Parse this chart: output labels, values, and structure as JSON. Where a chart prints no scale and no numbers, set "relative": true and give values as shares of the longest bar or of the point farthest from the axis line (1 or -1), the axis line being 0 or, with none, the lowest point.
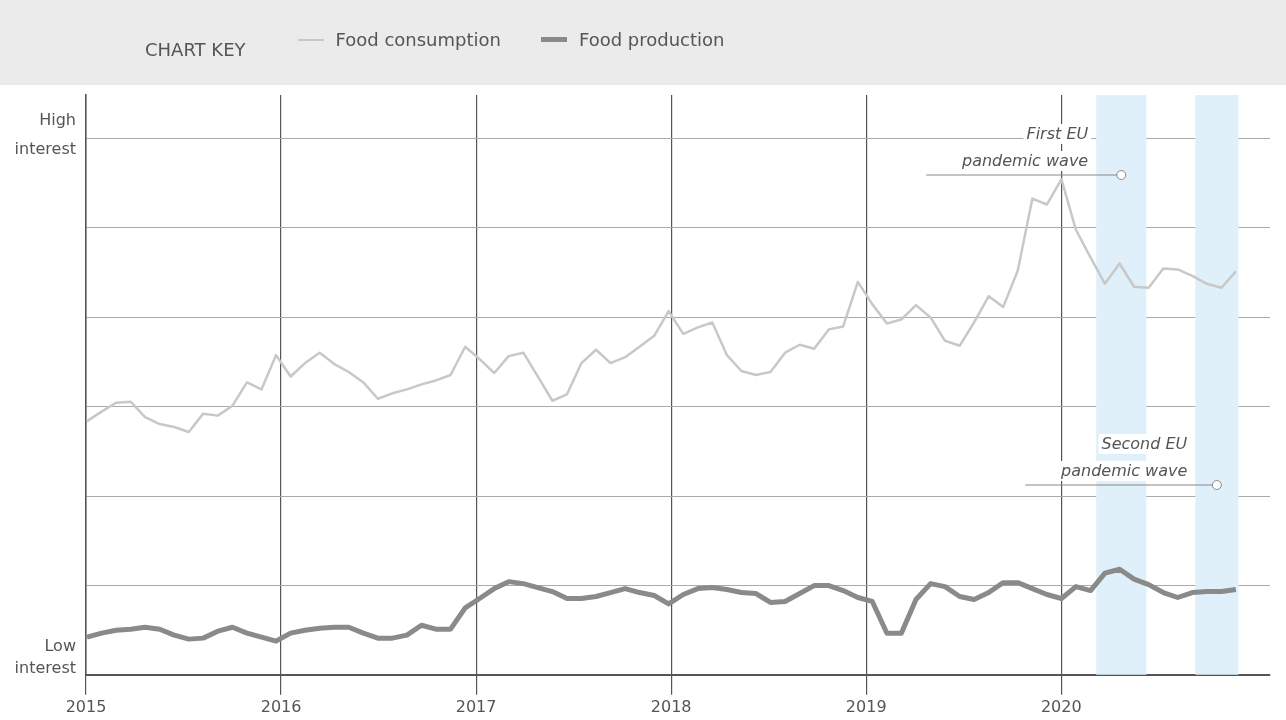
{
  "chart_data": {
    "type": "line",
    "relative": true,
    "legend": "top",
    "legend_title": "CHART KEY",
    "grid": true,
    "marker": "none",
    "line_style": "solid",
    "x": [
      2015.005,
      2015.08,
      2015.154,
      2015.229,
      2015.303,
      2015.378,
      2015.452,
      2015.527,
      2015.601,
      2015.676,
      2015.751,
      2015.825,
      2015.9,
      2015.974,
      2016.049,
      2016.123,
      2016.198,
      2016.273,
      2016.347,
      2016.422,
      2016.496,
      2016.571,
      2016.645,
      2016.72,
      2016.794,
      2016.869,
      2016.944,
      2017.018,
      2017.093,
      2017.167,
      2017.242,
      2017.316,
      2017.391,
      2017.466,
      2017.54,
      2017.615,
      2017.689,
      2017.764,
      2017.838,
      2017.913,
      2017.987,
      2018.062,
      2018.137,
      2018.211,
      2018.286,
      2018.36,
      2018.435,
      2018.509,
      2018.584,
      2018.659,
      2018.733,
      2018.808,
      2018.882,
      2018.957,
      2019.031,
      2019.106,
      2019.18,
      2019.255,
      2019.33,
      2019.404,
      2019.479,
      2019.553,
      2019.628,
      2019.702,
      2019.777,
      2019.852,
      2019.926,
      2020.001,
      2020.075,
      2020.15,
      2020.224,
      2020.299,
      2020.373,
      2020.448,
      2020.523,
      2020.597,
      2020.672,
      2020.746,
      2020.821,
      2020.895
    ],
    "xlim": [
      2015,
      2021.07
    ],
    "xticks": [
      2015,
      2016,
      2017,
      2018,
      2019,
      2020
    ],
    "series": [
      {
        "name": "Food consumption",
        "color": "#c8c8c8",
        "values": [
          0.512,
          0.531,
          0.549,
          0.551,
          0.52,
          0.506,
          0.5,
          0.49,
          0.527,
          0.523,
          0.543,
          0.59,
          0.576,
          0.645,
          0.602,
          0.629,
          0.65,
          0.627,
          0.611,
          0.59,
          0.557,
          0.568,
          0.576,
          0.586,
          0.594,
          0.605,
          0.662,
          0.637,
          0.609,
          0.643,
          0.65,
          0.602,
          0.553,
          0.566,
          0.629,
          0.656,
          0.629,
          0.641,
          0.662,
          0.684,
          0.734,
          0.688,
          0.701,
          0.711,
          0.645,
          0.613,
          0.605,
          0.611,
          0.65,
          0.666,
          0.658,
          0.697,
          0.703,
          0.793,
          0.748,
          0.709,
          0.717,
          0.746,
          0.721,
          0.674,
          0.664,
          0.711,
          0.764,
          0.742,
          0.816,
          0.961,
          0.949,
          1,
          0.898,
          0.842,
          0.789,
          0.83,
          0.783,
          0.781,
          0.82,
          0.818,
          0.805,
          0.789,
          0.781,
          0.814
        ]
      },
      {
        "name": "Food production",
        "color": "#8a8a8a",
        "values": [
          0.076,
          0.084,
          0.09,
          0.092,
          0.096,
          0.092,
          0.08,
          0.072,
          0.074,
          0.088,
          0.096,
          0.084,
          0.076,
          0.068,
          0.084,
          0.09,
          0.094,
          0.096,
          0.096,
          0.084,
          0.074,
          0.074,
          0.08,
          0.1,
          0.092,
          0.092,
          0.135,
          0.154,
          0.174,
          0.188,
          0.184,
          0.176,
          0.168,
          0.154,
          0.154,
          0.158,
          0.166,
          0.174,
          0.166,
          0.16,
          0.143,
          0.162,
          0.174,
          0.176,
          0.172,
          0.166,
          0.164,
          0.146,
          0.148,
          0.164,
          0.18,
          0.18,
          0.17,
          0.156,
          0.148,
          0.084,
          0.084,
          0.152,
          0.184,
          0.178,
          0.158,
          0.152,
          0.166,
          0.186,
          0.186,
          0.174,
          0.162,
          0.154,
          0.178,
          0.17,
          0.205,
          0.213,
          0.193,
          0.182,
          0.166,
          0.156,
          0.166,
          0.168,
          0.168,
          0.172
        ]
      }
    ],
    "bands": [
      {
        "axis": "x",
        "from": 2020.179,
        "to": 2020.436,
        "label": "First EU pandemic wave",
        "color": "#dff0fa"
      },
      {
        "axis": "x",
        "from": 2020.687,
        "to": 2020.908,
        "label": "Second EU pandemic wave",
        "color": "#dff0fa"
      }
    ],
    "annotations": [
      "High interest",
      "Low interest"
    ]
  }
}
